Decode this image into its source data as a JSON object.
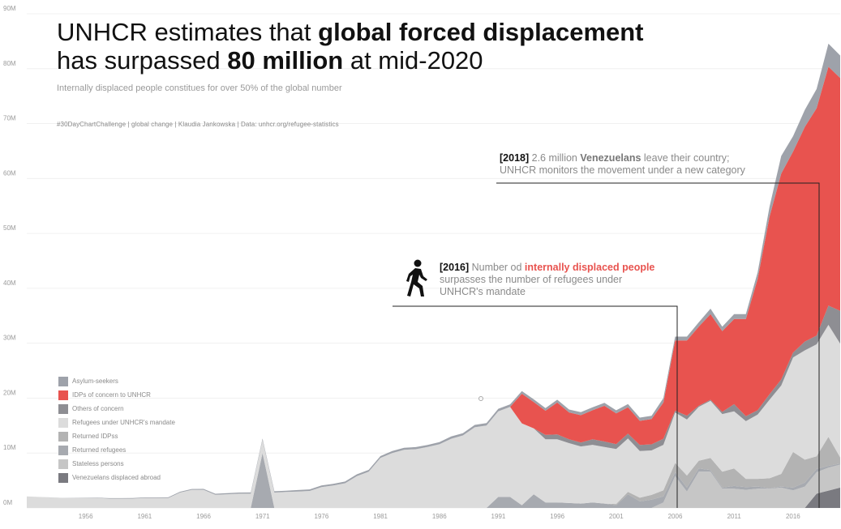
{
  "title": {
    "line1_pre": "UNHCR estimates that ",
    "line1_bold": "global forced displacement",
    "line2_pre": "has surpassed ",
    "line2_bold": "80 million",
    "line2_post": " at mid-2020"
  },
  "subtitle": "Internally displaced people constitues for over 50% of the global number",
  "caption": "#30DayChartChallenge  |  global change  |  Klaudia Jankowska  |  Data: unhcr.org/refugee-statistics",
  "annotations": {
    "a2018": {
      "year": "[2018]",
      "t1": " 2.6 million ",
      "bold": "Venezuelans",
      "t2": " leave their country;",
      "line2": "UNHCR monitors the movement under a new category"
    },
    "a2016": {
      "year": "[2016]",
      "t1": " Number od ",
      "bold": "internally displaced people",
      "line2": "surpasses the number of refugees under",
      "line3": "UNHCR's mandate",
      "icon": "walking-person-icon"
    }
  },
  "legend": [
    {
      "label": "Asylum-seekers",
      "color": "#9ea2aa"
    },
    {
      "label": "IDPs of concern to UNHCR",
      "color": "#e8534f"
    },
    {
      "label": "Others of concern",
      "color": "#8e8e93"
    },
    {
      "label": "Refugees under UNHCR's mandate",
      "color": "#dcdcdc"
    },
    {
      "label": "Returned IDPss",
      "color": "#b3b3b3"
    },
    {
      "label": "Returned refugees",
      "color": "#a7aab0"
    },
    {
      "label": "Stateless persons",
      "color": "#c6c6c6"
    },
    {
      "label": "Venezuelans displaced abroad",
      "color": "#7a7a80"
    }
  ],
  "chart_data": {
    "type": "area",
    "stacked": true,
    "x_axis": {
      "range": [
        1951,
        2020
      ],
      "ticks": [
        1956,
        1961,
        1966,
        1971,
        1976,
        1981,
        1986,
        1991,
        1996,
        2001,
        2006,
        2011,
        2016
      ]
    },
    "y_axis": {
      "range": [
        0,
        90
      ],
      "unit": "M",
      "tick_labels": [
        "0M",
        "10M",
        "20M",
        "30M",
        "40M",
        "50M",
        "60M",
        "70M",
        "80M",
        "90M"
      ]
    },
    "grid": "horizontal",
    "legend_position": "bottom-left",
    "series": [
      {
        "name": "Venezuelans displaced abroad",
        "x": [
          1951,
          2017,
          2018,
          2020
        ],
        "values": [
          0,
          0,
          2.6,
          3.7
        ]
      },
      {
        "name": "Stateless persons",
        "x": [
          1951,
          1990,
          1995,
          2000,
          2004,
          2005,
          2006,
          2007,
          2008,
          2009,
          2010,
          2011,
          2012,
          2013,
          2014,
          2015,
          2016,
          2017,
          2018,
          2019,
          2020
        ],
        "values": [
          0,
          0,
          0,
          0,
          0,
          1,
          5.8,
          3,
          6.6,
          6.6,
          3.5,
          3.5,
          3.3,
          3.5,
          3.5,
          3.7,
          3.2,
          3.9,
          3.9,
          4.2,
          4.2
        ]
      },
      {
        "name": "Returned refugees",
        "x": [
          1951,
          1969,
          1970,
          1971,
          1972,
          1973,
          1990,
          1991,
          1992,
          1993,
          1994,
          1995,
          1996,
          1997,
          1998,
          1999,
          2000,
          2001,
          2002,
          2003,
          2004,
          2005,
          2006,
          2007,
          2008,
          2009,
          2010,
          2011,
          2012,
          2013,
          2014,
          2015,
          2016,
          2017,
          2018,
          2019,
          2020
        ],
        "values": [
          0,
          0,
          0,
          10,
          0,
          0,
          0,
          2,
          2,
          0.5,
          2.5,
          1,
          1,
          0.9,
          0.8,
          1,
          0.8,
          0.5,
          2.5,
          1.2,
          1.5,
          1.1,
          0.7,
          0.7,
          0.6,
          0.3,
          0.2,
          0.5,
          0.5,
          0.4,
          0.1,
          0.2,
          0.5,
          0.7,
          0.6,
          0.3,
          0.2
        ]
      },
      {
        "name": "Returned IDPss",
        "x": [
          1951,
          1996,
          2000,
          2005,
          2006,
          2007,
          2008,
          2009,
          2010,
          2011,
          2012,
          2013,
          2014,
          2015,
          2016,
          2017,
          2018,
          2019,
          2020
        ],
        "values": [
          0,
          0,
          0,
          1.1,
          1.7,
          2.2,
          1.4,
          2.2,
          2.9,
          3.2,
          1.5,
          1.4,
          1.8,
          2.3,
          6.5,
          4.2,
          2.3,
          5.3,
          1.1
        ]
      },
      {
        "name": "Refugees under UNHCR's mandate",
        "x": [
          1951,
          1952,
          1953,
          1954,
          1955,
          1956,
          1957,
          1958,
          1959,
          1960,
          1961,
          1962,
          1963,
          1964,
          1965,
          1966,
          1967,
          1968,
          1969,
          1970,
          1971,
          1972,
          1973,
          1974,
          1975,
          1976,
          1977,
          1978,
          1979,
          1980,
          1981,
          1982,
          1983,
          1984,
          1985,
          1986,
          1987,
          1988,
          1989,
          1990,
          1991,
          1992,
          1993,
          1994,
          1995,
          1996,
          1997,
          1998,
          1999,
          2000,
          2001,
          2002,
          2003,
          2004,
          2005,
          2006,
          2007,
          2008,
          2009,
          2010,
          2011,
          2012,
          2013,
          2014,
          2015,
          2016,
          2017,
          2018,
          2019,
          2020
        ],
        "values": [
          2.1,
          2,
          1.9,
          1.8,
          1.8,
          1.8,
          1.8,
          1.7,
          1.7,
          1.7,
          1.8,
          1.8,
          1.8,
          2.8,
          3.3,
          3.3,
          2.4,
          2.5,
          2.6,
          2.6,
          2.4,
          2.8,
          2.9,
          3,
          3.1,
          3.8,
          4.1,
          4.5,
          5.8,
          6.6,
          9.1,
          10,
          10.6,
          10.7,
          11.1,
          11.6,
          12.6,
          13.2,
          14.7,
          15,
          15.6,
          16.4,
          14.9,
          12,
          11.5,
          11.5,
          10.9,
          10.4,
          10.5,
          10.3,
          10,
          9.7,
          8.5,
          8.1,
          8.3,
          9.2,
          10.2,
          9.8,
          10.4,
          10.5,
          10.4,
          10.5,
          11.7,
          14.3,
          16.1,
          17.2,
          19.9,
          20.4,
          20.4,
          20.7
        ]
      },
      {
        "name": "Others of concern",
        "x": [
          1951,
          1993,
          1994,
          1995,
          1996,
          1997,
          1998,
          1999,
          2000,
          2001,
          2002,
          2003,
          2004,
          2005,
          2006,
          2007,
          2008,
          2009,
          2010,
          2011,
          2012,
          2013,
          2014,
          2015,
          2016,
          2017,
          2018,
          2019,
          2020
        ],
        "values": [
          0,
          0,
          0,
          0.8,
          0.9,
          0.7,
          0.7,
          1,
          1,
          0.9,
          0.9,
          1.1,
          1.1,
          1.1,
          0.3,
          0.7,
          0.2,
          0.2,
          0.4,
          1.3,
          0.9,
          0.8,
          1,
          1.1,
          0.9,
          1.6,
          1.6,
          3.5,
          6
        ]
      },
      {
        "name": "IDPs of concern to UNHCR",
        "x": [
          1951,
          1991,
          1992,
          1993,
          1994,
          1995,
          1996,
          1997,
          1998,
          1999,
          2000,
          2001,
          2002,
          2003,
          2004,
          2005,
          2006,
          2007,
          2008,
          2009,
          2010,
          2011,
          2012,
          2013,
          2014,
          2015,
          2016,
          2017,
          2018,
          2019,
          2020
        ],
        "values": [
          0,
          0,
          0,
          5.4,
          4.8,
          4.4,
          5.8,
          4.9,
          5,
          5.3,
          6.5,
          5.6,
          4.8,
          4.4,
          4.6,
          6.6,
          12.8,
          13.7,
          14.4,
          15.6,
          14.7,
          15.5,
          17.7,
          23.9,
          32.3,
          37.5,
          36.6,
          39.1,
          41.4,
          43.5,
          42.4
        ]
      },
      {
        "name": "Asylum-seekers",
        "x": [
          1951,
          2004,
          2005,
          2006,
          2007,
          2008,
          2009,
          2010,
          2011,
          2012,
          2013,
          2014,
          2015,
          2016,
          2017,
          2018,
          2019,
          2020
        ],
        "values": [
          0,
          0.6,
          0.8,
          0.7,
          0.7,
          0.8,
          1,
          0.8,
          0.9,
          0.9,
          1.2,
          1.8,
          3.2,
          2.8,
          3.1,
          3.5,
          4.2,
          4.1
        ]
      }
    ]
  }
}
